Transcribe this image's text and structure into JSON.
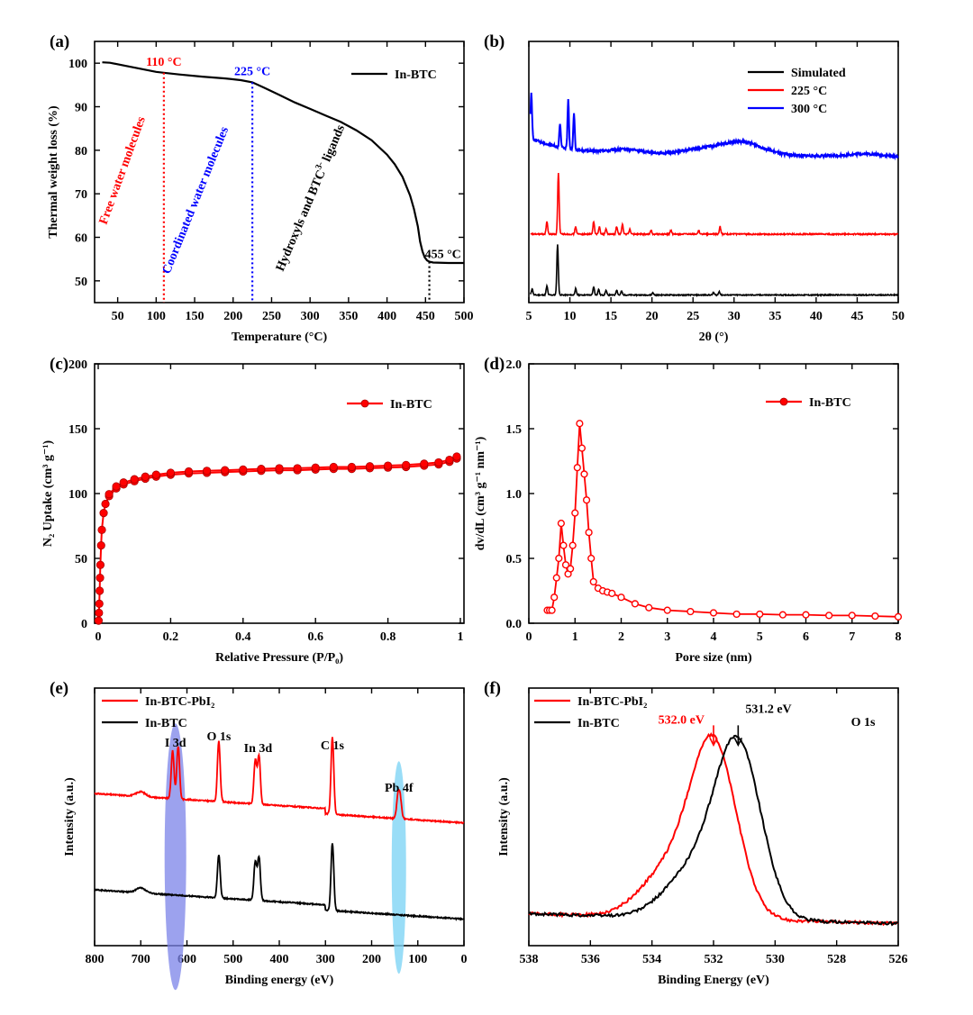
{
  "colors": {
    "black": "#000000",
    "red": "#ff0000",
    "blue": "#0000ff",
    "ellipse_purple": "#7b83e8",
    "ellipse_cyan": "#7fd4f5"
  },
  "chart_data": [
    {
      "panel": "(a)",
      "type": "line",
      "xlabel": "Temperature (°C)",
      "ylabel": "Thermal weight loss (%)",
      "xlim": [
        20,
        500
      ],
      "ylim": [
        45,
        105
      ],
      "xticks": [
        50,
        100,
        150,
        200,
        250,
        300,
        350,
        400,
        450,
        500
      ],
      "yticks": [
        50,
        60,
        70,
        80,
        90,
        100
      ],
      "legend": "top-right",
      "series": [
        {
          "name": "In-BTC",
          "color": "#000000",
          "x": [
            30,
            40,
            60,
            80,
            100,
            110,
            130,
            160,
            190,
            210,
            225,
            240,
            260,
            280,
            300,
            320,
            340,
            360,
            380,
            400,
            410,
            420,
            430,
            435,
            440,
            443,
            446,
            449,
            452,
            455,
            460,
            480,
            500
          ],
          "y": [
            100.2,
            100.1,
            99.4,
            98.7,
            98.0,
            97.8,
            97.4,
            96.9,
            96.5,
            96.1,
            95.6,
            94.4,
            92.7,
            91.0,
            89.5,
            88.0,
            86.5,
            84.6,
            82.3,
            79.0,
            76.8,
            73.9,
            69.6,
            66.5,
            62.5,
            59.0,
            56.8,
            55.4,
            54.7,
            54.4,
            54.2,
            54.1,
            54.1
          ]
        }
      ],
      "vlines": [
        {
          "x": 110,
          "color": "#ff0000",
          "label": "110 °C"
        },
        {
          "x": 225,
          "color": "#0000ff",
          "label": "225 °C"
        },
        {
          "x": 455,
          "color": "#000000",
          "label": "455 °C"
        }
      ],
      "annotations": [
        {
          "text": "Free water molecules",
          "color": "#ff0000"
        },
        {
          "text": "Coordinated water molecules",
          "color": "#0000ff"
        },
        {
          "text": "Hydroxyls and BTC",
          "sup": "3-",
          "after": " ligands",
          "color": "#000000"
        }
      ]
    },
    {
      "panel": "(b)",
      "type": "line",
      "xlabel": "2θ (°)",
      "ylabel": "",
      "xlim": [
        5,
        50
      ],
      "xticks": [
        5,
        10,
        15,
        20,
        25,
        30,
        35,
        40,
        45,
        50
      ],
      "legend": "top-right",
      "series": [
        {
          "name": "Simulated",
          "color": "#000000",
          "baseline": 0,
          "noise": 0.4,
          "peaks": [
            [
              5.4,
              2.5
            ],
            [
              7.2,
              3.5
            ],
            [
              8.5,
              20
            ],
            [
              10.7,
              2.5
            ],
            [
              12.9,
              3.2
            ],
            [
              13.5,
              2.2
            ],
            [
              14.4,
              1.8
            ],
            [
              15.7,
              2
            ],
            [
              16.3,
              1.5
            ],
            [
              20.1,
              1
            ],
            [
              27.5,
              1
            ],
            [
              28.2,
              1.4
            ]
          ]
        },
        {
          "name": "225 °C",
          "color": "#ff0000",
          "baseline": 24,
          "noise": 0.5,
          "peaks": [
            [
              7.2,
              5
            ],
            [
              8.6,
              24
            ],
            [
              10.7,
              3
            ],
            [
              12.9,
              5
            ],
            [
              13.6,
              3
            ],
            [
              14.4,
              2
            ],
            [
              15.7,
              3
            ],
            [
              16.4,
              4
            ],
            [
              17.3,
              2
            ],
            [
              19.9,
              1.5
            ],
            [
              22.3,
              1.5
            ],
            [
              25.7,
              1.5
            ],
            [
              28.3,
              3
            ]
          ]
        },
        {
          "name": "300 °C",
          "color": "#0000ff",
          "baseline": 56,
          "noise": 1.0,
          "broad": [
            [
              31,
              5,
              2.5
            ],
            [
              26,
              2,
              2.5
            ],
            [
              17,
              1.5,
              2
            ],
            [
              46,
              1,
              2
            ]
          ],
          "peaks": [
            [
              5.3,
              18
            ],
            [
              8.8,
              9
            ],
            [
              9.8,
              19
            ],
            [
              10.5,
              14
            ]
          ]
        }
      ]
    },
    {
      "panel": "(c)",
      "type": "line",
      "xlabel": "Relative Pressure (P/P₀)",
      "ylabel": "N₂ Uptake (cm³ g⁻¹)",
      "xlim": [
        -0.01,
        1.01
      ],
      "ylim": [
        0,
        200
      ],
      "xticks": [
        0.0,
        0.2,
        0.4,
        0.6,
        0.8,
        1.0
      ],
      "yticks": [
        0,
        50,
        100,
        150,
        200
      ],
      "legend": "top-right",
      "series": [
        {
          "name": "In-BTC",
          "color": "#ff0000",
          "x": [
            0.001,
            0.002,
            0.003,
            0.004,
            0.005,
            0.006,
            0.008,
            0.01,
            0.015,
            0.02,
            0.03,
            0.05,
            0.07,
            0.1,
            0.13,
            0.16,
            0.2,
            0.25,
            0.3,
            0.35,
            0.4,
            0.45,
            0.5,
            0.55,
            0.6,
            0.65,
            0.7,
            0.75,
            0.8,
            0.85,
            0.9,
            0.94,
            0.97,
            0.99
          ],
          "y": [
            2,
            8,
            15,
            25,
            35,
            45,
            60,
            72,
            85,
            92,
            98,
            104,
            107,
            109.5,
            111.5,
            113,
            114.5,
            115.5,
            116,
            116.5,
            117,
            117.5,
            118,
            118,
            118.5,
            119,
            119,
            119.5,
            120,
            120.5,
            121.5,
            122.5,
            124.5,
            127
          ]
        }
      ]
    },
    {
      "panel": "(d)",
      "type": "line",
      "xlabel": "Pore size (nm)",
      "ylabel": "dv/dL (cm³ g⁻¹ nm⁻¹)",
      "xlim": [
        0,
        8
      ],
      "ylim": [
        0,
        2.0
      ],
      "xticks": [
        0,
        1,
        2,
        3,
        4,
        5,
        6,
        7,
        8
      ],
      "yticks": [
        0.0,
        0.5,
        1.0,
        1.5,
        2.0
      ],
      "legend": "top-right",
      "series": [
        {
          "name": "In-BTC",
          "color": "#ff0000",
          "x": [
            0.4,
            0.45,
            0.5,
            0.55,
            0.6,
            0.65,
            0.7,
            0.75,
            0.8,
            0.85,
            0.9,
            0.95,
            1.0,
            1.05,
            1.1,
            1.15,
            1.2,
            1.25,
            1.3,
            1.35,
            1.4,
            1.5,
            1.6,
            1.7,
            1.8,
            2.0,
            2.3,
            2.6,
            3.0,
            3.5,
            4.0,
            4.5,
            5.0,
            5.5,
            6.0,
            6.5,
            7.0,
            7.5,
            8.0
          ],
          "y": [
            0.1,
            0.1,
            0.1,
            0.2,
            0.35,
            0.5,
            0.77,
            0.6,
            0.45,
            0.38,
            0.42,
            0.6,
            0.85,
            1.2,
            1.54,
            1.35,
            1.15,
            0.95,
            0.7,
            0.5,
            0.32,
            0.27,
            0.25,
            0.24,
            0.23,
            0.2,
            0.15,
            0.12,
            0.1,
            0.09,
            0.08,
            0.07,
            0.07,
            0.065,
            0.065,
            0.06,
            0.06,
            0.055,
            0.05
          ]
        }
      ]
    },
    {
      "panel": "(e)",
      "type": "line",
      "xlabel": "Binding energy (eV)",
      "ylabel": "Intensity (a.u.)",
      "xlim": [
        800,
        0
      ],
      "xticks": [
        800,
        700,
        600,
        500,
        400,
        300,
        200,
        100,
        0
      ],
      "legend": "top-left",
      "series": [
        {
          "name": "In-BTC-PbI₂",
          "color": "#ff0000",
          "offset": 40,
          "peaks": [
            [
              631,
              20
            ],
            [
              619,
              22
            ],
            [
              531,
              25
            ],
            [
              452,
              18
            ],
            [
              444,
              20
            ],
            [
              285,
              32
            ],
            [
              143,
              9
            ],
            [
              138,
              8
            ]
          ]
        },
        {
          "name": "In-BTC",
          "color": "#000000",
          "offset": 0,
          "peaks": [
            [
              531,
              18
            ],
            [
              452,
              16
            ],
            [
              444,
              18
            ],
            [
              285,
              28
            ]
          ]
        }
      ],
      "annotations": [
        {
          "text": "I 3d"
        },
        {
          "text": "O 1s"
        },
        {
          "text": "In 3d"
        },
        {
          "text": "C 1s"
        },
        {
          "text": "Pb 4f"
        }
      ]
    },
    {
      "panel": "(f)",
      "type": "line",
      "xlabel": "Binding Energy (eV)",
      "ylabel": "Intensity (a.u.)",
      "title": "O 1s",
      "xlim": [
        538,
        526
      ],
      "xticks": [
        538,
        536,
        534,
        532,
        530,
        528,
        526
      ],
      "legend": "top-left",
      "series": [
        {
          "name": "In-BTC-PbI₂",
          "color": "#ff0000",
          "peak": 532.0,
          "peak_label": "532.0 eV"
        },
        {
          "name": "In-BTC",
          "color": "#000000",
          "peak": 531.2,
          "peak_label": "531.2 eV"
        }
      ]
    }
  ]
}
